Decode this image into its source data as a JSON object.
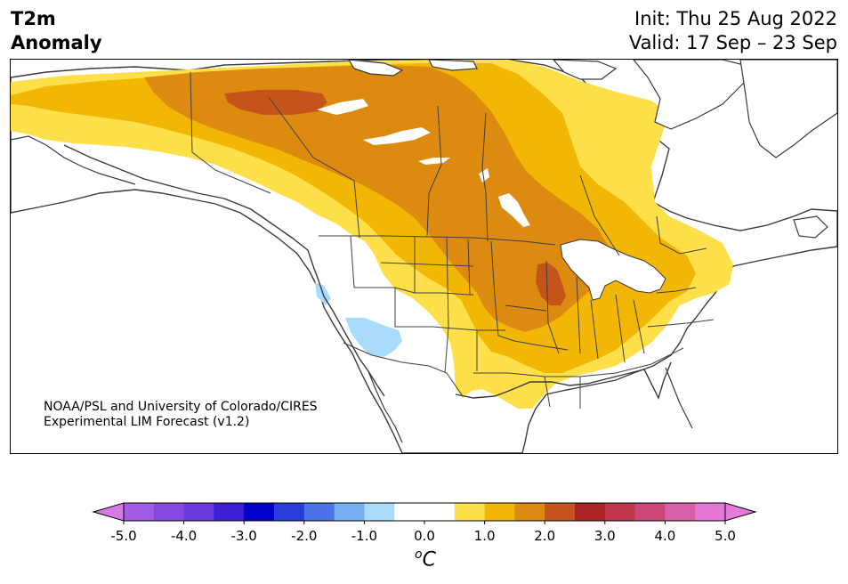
{
  "title": {
    "line1": "T2m",
    "line2": "Anomaly"
  },
  "init": "Init: Thu 25 Aug 2022",
  "valid": "Valid: 17 Sep – 23 Sep",
  "credit": {
    "line1": "NOAA/PSL and University of Colorado/CIRES",
    "line2": "Experimental LIM Forecast (v1.2)"
  },
  "colorbar": {
    "ticks": [
      "-5.0",
      "-4.0",
      "-3.0",
      "-2.0",
      "-1.0",
      "0.0",
      "1.0",
      "2.0",
      "3.0",
      "4.0",
      "5.0"
    ],
    "unit_sup": "o",
    "unit": "C",
    "bins": [
      {
        "from": -5.0,
        "to": -4.5,
        "color": "#a25ce6"
      },
      {
        "from": -4.5,
        "to": -4.0,
        "color": "#8648e0"
      },
      {
        "from": -4.0,
        "to": -3.5,
        "color": "#6a38dc"
      },
      {
        "from": -3.5,
        "to": -3.0,
        "color": "#3a1fd6"
      },
      {
        "from": -3.0,
        "to": -2.5,
        "color": "#0000cc"
      },
      {
        "from": -2.5,
        "to": -2.0,
        "color": "#2a3bdc"
      },
      {
        "from": -2.0,
        "to": -1.5,
        "color": "#4a74e6"
      },
      {
        "from": -1.5,
        "to": -1.0,
        "color": "#76b0f2"
      },
      {
        "from": -1.0,
        "to": -0.5,
        "color": "#a9dcfb"
      },
      {
        "from": -0.5,
        "to": 0.5,
        "color": "#ffffff"
      },
      {
        "from": 0.5,
        "to": 1.0,
        "color": "#ffe04a"
      },
      {
        "from": 1.0,
        "to": 1.5,
        "color": "#f2b705"
      },
      {
        "from": 1.5,
        "to": 2.0,
        "color": "#dc8a10"
      },
      {
        "from": 2.0,
        "to": 2.5,
        "color": "#c4541a"
      },
      {
        "from": 2.5,
        "to": 3.0,
        "color": "#aa2424"
      },
      {
        "from": 3.0,
        "to": 3.5,
        "color": "#c0364a"
      },
      {
        "from": 3.5,
        "to": 4.0,
        "color": "#cc4878"
      },
      {
        "from": 4.0,
        "to": 4.5,
        "color": "#d860a8"
      },
      {
        "from": 4.5,
        "to": 5.0,
        "color": "#e676d6"
      }
    ],
    "under_color": "#d77ae8",
    "over_color": "#e67ad8"
  },
  "map": {
    "colors": {
      "ocean": "#ffffff",
      "coast": "#3a3a3a",
      "border": "#404040",
      "lake": "#ffffff",
      "negative": "#a9dcfb",
      "anom_0_5": "#ffe04a",
      "anom_1_0": "#f2b705",
      "anom_1_5": "#dc8a10",
      "anom_2_0": "#c4541a"
    }
  }
}
